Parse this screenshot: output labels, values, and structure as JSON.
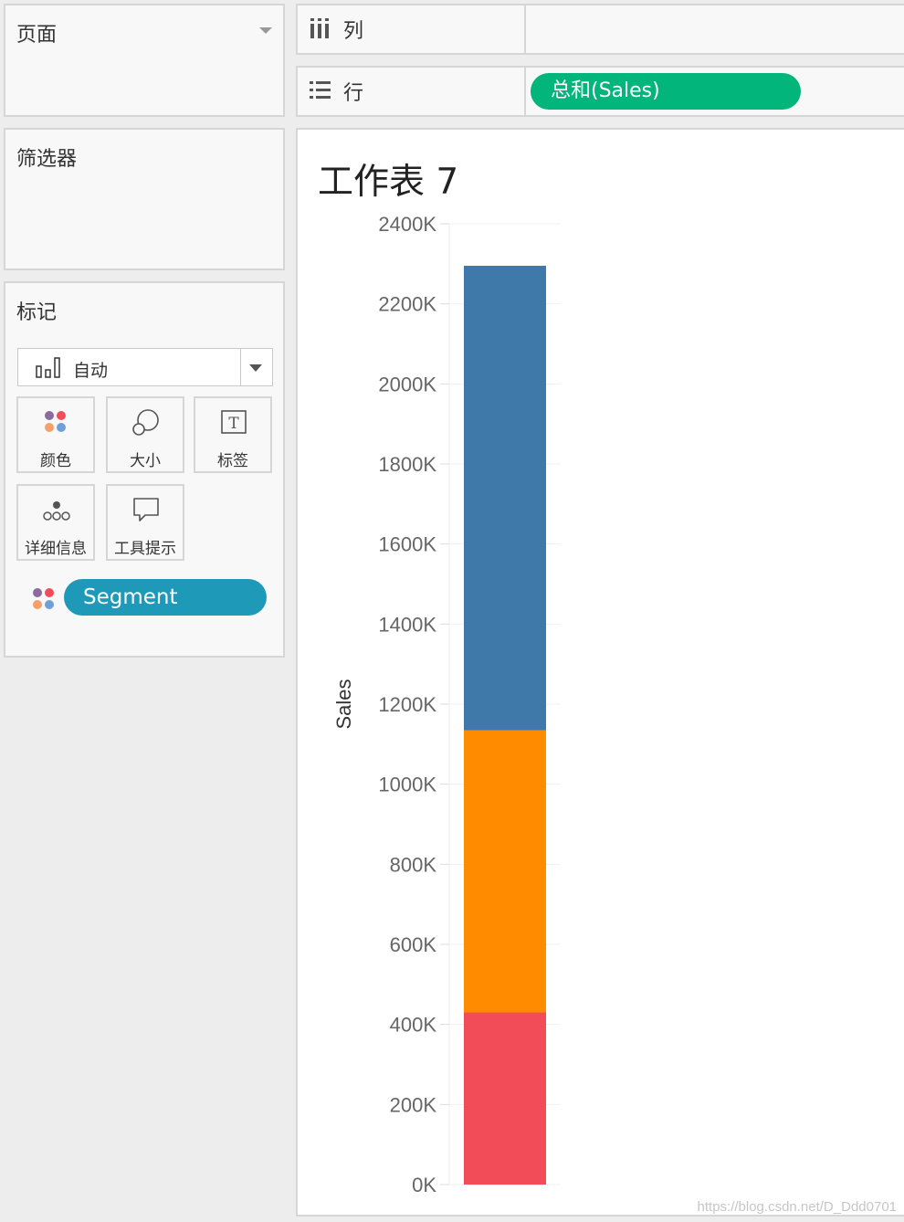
{
  "left_panel": {
    "pages": {
      "title": "页面"
    },
    "filters": {
      "title": "筛选器"
    },
    "marks": {
      "title": "标记",
      "mark_type": "自动",
      "buttons": {
        "color": "颜色",
        "size": "大小",
        "label": "标签",
        "detail": "详细信息",
        "tooltip": "工具提示"
      },
      "field_pill": "Segment",
      "field_pill_color": "#1e9ab8"
    }
  },
  "shelves": {
    "columns": {
      "label": "列"
    },
    "rows": {
      "label": "行",
      "pill": "总和(Sales)",
      "pill_color": "#02b57a"
    }
  },
  "sheet": {
    "title": "工作表 7"
  },
  "chart_data": {
    "type": "bar",
    "stacked": true,
    "categories": [
      ""
    ],
    "ylabel": "Sales",
    "ylim": [
      0,
      2400000
    ],
    "y_ticks": [
      0,
      200000,
      400000,
      600000,
      800000,
      1000000,
      1200000,
      1400000,
      1600000,
      1800000,
      2000000,
      2200000,
      2400000
    ],
    "y_tick_labels": [
      "0K",
      "200K",
      "400K",
      "600K",
      "800K",
      "1000K",
      "1200K",
      "1400K",
      "1600K",
      "1800K",
      "2000K",
      "2200K",
      "2400K"
    ],
    "series": [
      {
        "color": "#f24c58",
        "values": [
          430000
        ]
      },
      {
        "color": "#ff8c00",
        "values": [
          705000
        ]
      },
      {
        "color": "#3e79a9",
        "values": [
          1160000
        ]
      }
    ],
    "grid": true
  },
  "watermark": "https://blog.csdn.net/D_Ddd0701"
}
